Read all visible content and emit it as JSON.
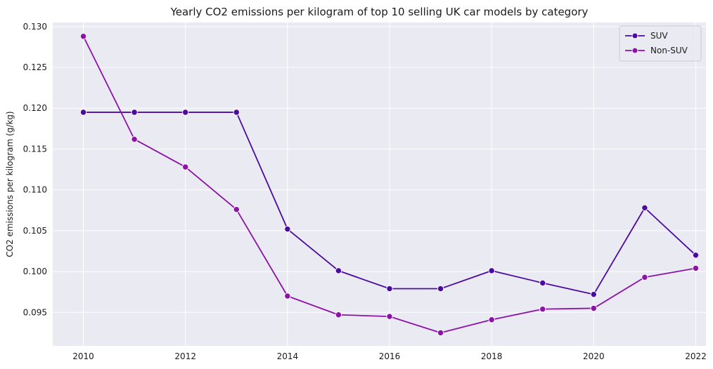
{
  "chart_data": {
    "type": "line",
    "title": "Yearly CO2 emissions per kilogram of top 10 selling UK car models by category",
    "xlabel": "",
    "ylabel": "CO2 emissions per kilogram (g/kg)",
    "x": [
      2010,
      2011,
      2012,
      2013,
      2014,
      2015,
      2016,
      2017,
      2018,
      2019,
      2020,
      2021,
      2022
    ],
    "xlim": [
      2009.4,
      2022.2
    ],
    "ylim": [
      0.0909,
      0.1305
    ],
    "xticks": [
      2010,
      2012,
      2014,
      2016,
      2018,
      2020,
      2022
    ],
    "yticks": [
      0.095,
      0.1,
      0.105,
      0.11,
      0.115,
      0.12,
      0.125,
      0.13
    ],
    "xtick_labels": [
      "2010",
      "2012",
      "2014",
      "2016",
      "2018",
      "2020",
      "2022"
    ],
    "ytick_labels": [
      "0.095",
      "0.100",
      "0.105",
      "0.110",
      "0.115",
      "0.120",
      "0.125",
      "0.130"
    ],
    "grid": true,
    "legend_position": "top-right",
    "background_color": "#eaeaf2",
    "grid_color": "#ffffff",
    "series": [
      {
        "name": "SUV",
        "color": "#4b0aa0",
        "values": [
          0.1195,
          0.1195,
          0.1195,
          0.1195,
          0.1052,
          0.1001,
          0.0979,
          0.0979,
          0.1001,
          0.0986,
          0.0972,
          0.1078,
          0.102
        ]
      },
      {
        "name": "Non-SUV",
        "color": "#8c12a8",
        "values": [
          0.1288,
          0.1162,
          0.1128,
          0.1076,
          0.097,
          0.0947,
          0.0945,
          0.0925,
          0.0941,
          0.0954,
          0.0955,
          0.0993,
          0.1004
        ]
      }
    ]
  }
}
